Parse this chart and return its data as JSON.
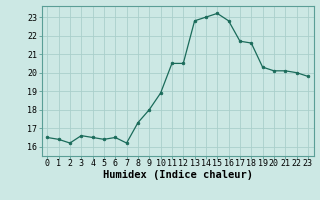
{
  "x": [
    0,
    1,
    2,
    3,
    4,
    5,
    6,
    7,
    8,
    9,
    10,
    11,
    12,
    13,
    14,
    15,
    16,
    17,
    18,
    19,
    20,
    21,
    22,
    23
  ],
  "y": [
    16.5,
    16.4,
    16.2,
    16.6,
    16.5,
    16.4,
    16.5,
    16.2,
    17.3,
    18.0,
    18.9,
    20.5,
    20.5,
    22.8,
    23.0,
    23.2,
    22.8,
    21.7,
    21.6,
    20.3,
    20.1,
    20.1,
    20.0,
    19.8
  ],
  "xlabel": "Humidex (Indice chaleur)",
  "ylim": [
    15.5,
    23.6
  ],
  "xlim": [
    -0.5,
    23.5
  ],
  "yticks": [
    16,
    17,
    18,
    19,
    20,
    21,
    22,
    23
  ],
  "xticks": [
    0,
    1,
    2,
    3,
    4,
    5,
    6,
    7,
    8,
    9,
    10,
    11,
    12,
    13,
    14,
    15,
    16,
    17,
    18,
    19,
    20,
    21,
    22,
    23
  ],
  "xtick_labels": [
    "0",
    "1",
    "2",
    "3",
    "4",
    "5",
    "6",
    "7",
    "8",
    "9",
    "10",
    "11",
    "12",
    "13",
    "14",
    "15",
    "16",
    "17",
    "18",
    "19",
    "20",
    "21",
    "22",
    "23"
  ],
  "line_color": "#1a6b5a",
  "marker_color": "#1a6b5a",
  "bg_color": "#cce8e4",
  "grid_color": "#aacfcb",
  "tick_fontsize": 6.0,
  "xlabel_fontsize": 7.5
}
